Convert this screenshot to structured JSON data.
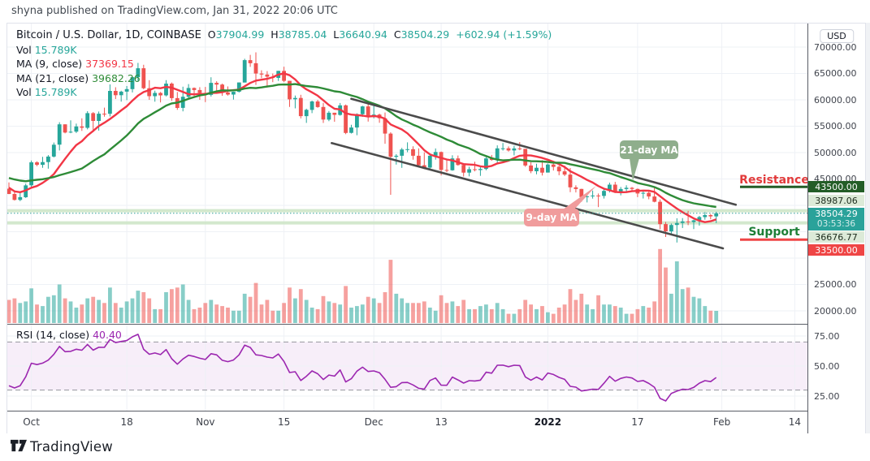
{
  "published_bar": {
    "text": "shyna published on TradingView.com, Jan 31, 2022 20:06 UTC"
  },
  "legend": {
    "symbol": "Bitcoin / U.S. Dollar, 1D, COINBASE",
    "ohlc": [
      {
        "k": "O",
        "v": "37904.99"
      },
      {
        "k": "H",
        "v": "38785.04"
      },
      {
        "k": "L",
        "v": "36640.94"
      },
      {
        "k": "C",
        "v": "38504.29"
      }
    ],
    "change": "+602.94 (+1.59%)",
    "rows": [
      {
        "label": "Vol",
        "value": "15.789K",
        "color": "#26a69a"
      },
      {
        "label": "MA (9, close)",
        "value": "37369.15",
        "color": "#f23645"
      },
      {
        "label": "MA (21, close)",
        "value": "39682.26",
        "color": "#2e8b37"
      },
      {
        "label": "Vol",
        "value": "15.789K",
        "color": "#26a69a"
      }
    ]
  },
  "annotations": {
    "ma21_callout": "21-day MA",
    "ma9_callout": "9-day MA",
    "resistance_label": "Resistance",
    "support_label": "Support"
  },
  "rsi_pane": {
    "label": "RSI (14, close)",
    "value": "40.40"
  },
  "right_axis": {
    "currency": "USD"
  },
  "footer": {
    "brand": "TradingView"
  },
  "colors": {
    "up": "#26a69a",
    "down": "#ef5350",
    "ma_fast": "#f23645",
    "ma_slow": "#2e8b37",
    "rsi_line": "#9c27b0",
    "channel": "#4b4b4b",
    "pale_level": "#cfe6c8",
    "resistance_line": "#235d27",
    "support_line": "#ef4545",
    "resistance_text": "#e23b3b",
    "support_text": "#1d7f36",
    "callout_green": "#8fae8c",
    "callout_pink": "#f09c9c",
    "badge_dark_green": "#235d27",
    "badge_pale_green": "#dcead8",
    "badge_teal": "#2aa29a",
    "badge_red": "#ef4545",
    "grid": "#eef1f6"
  },
  "chart_data": {
    "type": "candlestick",
    "symbol": "Bitcoin / U.S. Dollar",
    "interval": "1D",
    "exchange": "COINBASE",
    "first_visible_date": "2021-09-27",
    "price_axis": {
      "min": 20000,
      "max": 70000,
      "step": 5000,
      "visible_labels": [
        {
          "text": "70000.00",
          "price": 70000
        },
        {
          "text": "65000.00",
          "price": 65000
        },
        {
          "text": "60000.00",
          "price": 60000
        },
        {
          "text": "55000.00",
          "price": 55000
        },
        {
          "text": "50000.00",
          "price": 50000
        },
        {
          "text": "45000.00",
          "price": 45000
        },
        {
          "text": "25000.00",
          "price": 25000
        },
        {
          "text": "20000.00",
          "price": 20000
        }
      ]
    },
    "time_labels": [
      {
        "text": "Oct",
        "day": 4,
        "bold": false
      },
      {
        "text": "18",
        "day": 21,
        "bold": false
      },
      {
        "text": "Nov",
        "day": 35,
        "bold": false
      },
      {
        "text": "15",
        "day": 49,
        "bold": false
      },
      {
        "text": "Dec",
        "day": 65,
        "bold": false
      },
      {
        "text": "13",
        "day": 77,
        "bold": false
      },
      {
        "text": "2022",
        "day": 96,
        "bold": true
      },
      {
        "text": "17",
        "day": 112,
        "bold": false
      },
      {
        "text": "Feb",
        "day": 127,
        "bold": false
      },
      {
        "text": "14",
        "day": 140,
        "bold": false
      }
    ],
    "last_price": {
      "value": 38504.29,
      "text": "38504.29",
      "countdown": "03:53:36",
      "direction": "up"
    },
    "levels": [
      {
        "name": "resistance",
        "price": 43500.0,
        "text": "43500.00",
        "kind": "segment-dark-green"
      },
      {
        "name": "level-upper",
        "price": 38987.06,
        "text": "38987.06",
        "kind": "full-pale-green"
      },
      {
        "name": "level-lower",
        "price": 36676.77,
        "text": "36676.77",
        "kind": "full-pale-green"
      },
      {
        "name": "support",
        "price": 33500.0,
        "text": "33500.00",
        "kind": "segment-red"
      }
    ],
    "channel": {
      "upper": [
        [
          61,
          60200
        ],
        [
          129.5,
          40100
        ]
      ],
      "lower": [
        [
          57.5,
          51800
        ],
        [
          127.2,
          31850
        ]
      ]
    },
    "ma": [
      {
        "period": 9,
        "color": "#f23645"
      },
      {
        "period": 21,
        "color": "#2e8b37"
      }
    ],
    "rsi": {
      "period": 14,
      "bands": [
        70,
        30
      ],
      "ticks": [
        {
          "text": "75.00",
          "v": 75
        },
        {
          "text": "50.00",
          "v": 50
        },
        {
          "text": "25.00",
          "v": 25
        }
      ]
    },
    "volume_unit": "K",
    "seed_closes": [
      52700,
      46800,
      46050,
      46400,
      44850,
      45150,
      46050,
      44950,
      47100,
      48150,
      47750,
      47270,
      48250,
      47250,
      43000,
      40700,
      43550,
      44890,
      42700,
      42680,
      43160
    ],
    "candles": [
      [
        43160,
        44350,
        42100,
        42160,
        30
      ],
      [
        42160,
        42750,
        40900,
        41030,
        32
      ],
      [
        41030,
        42600,
        40800,
        41550,
        26
      ],
      [
        41550,
        44100,
        41400,
        43790,
        28
      ],
      [
        43790,
        48500,
        43300,
        48150,
        45
      ],
      [
        48150,
        48340,
        47430,
        47680,
        24
      ],
      [
        47680,
        49200,
        47100,
        48200,
        22
      ],
      [
        48200,
        49530,
        46950,
        49250,
        34
      ],
      [
        49250,
        51900,
        49070,
        51500,
        36
      ],
      [
        51500,
        55750,
        50400,
        55350,
        50
      ],
      [
        55350,
        55350,
        53650,
        53800,
        32
      ],
      [
        53800,
        56100,
        53670,
        53960,
        28
      ],
      [
        53960,
        55500,
        53700,
        54950,
        20
      ],
      [
        54950,
        56500,
        54100,
        54700,
        24
      ],
      [
        54700,
        57840,
        54400,
        57480,
        32
      ],
      [
        57480,
        57680,
        53880,
        56000,
        34
      ],
      [
        56000,
        57780,
        54170,
        57370,
        30
      ],
      [
        57370,
        58520,
        56820,
        57350,
        26
      ],
      [
        57350,
        62930,
        56850,
        61690,
        46
      ],
      [
        61690,
        62380,
        60150,
        60880,
        26
      ],
      [
        60880,
        61720,
        59660,
        61550,
        20
      ],
      [
        61550,
        62620,
        59960,
        62030,
        28
      ],
      [
        62030,
        64480,
        61400,
        64290,
        32
      ],
      [
        64290,
        67000,
        63500,
        65990,
        42
      ],
      [
        65990,
        66650,
        62000,
        62200,
        40
      ],
      [
        62200,
        63720,
        60000,
        60690,
        32
      ],
      [
        60690,
        61740,
        59650,
        61310,
        18
      ],
      [
        61310,
        61500,
        59510,
        60850,
        18
      ],
      [
        60850,
        63730,
        60650,
        63080,
        40
      ],
      [
        63080,
        63290,
        59820,
        60330,
        44
      ],
      [
        60330,
        61470,
        58100,
        58470,
        46
      ],
      [
        58470,
        62500,
        57820,
        60580,
        50
      ],
      [
        60580,
        62980,
        60170,
        62250,
        30
      ],
      [
        62250,
        62360,
        60700,
        61860,
        18
      ],
      [
        61860,
        62400,
        60000,
        61320,
        20
      ],
      [
        61320,
        62440,
        59570,
        60950,
        26
      ],
      [
        60950,
        64270,
        60630,
        63220,
        30
      ],
      [
        63220,
        63520,
        61350,
        62900,
        24
      ],
      [
        62900,
        63080,
        60770,
        61400,
        22
      ],
      [
        61400,
        62540,
        60800,
        61000,
        20
      ],
      [
        61000,
        61560,
        60050,
        61520,
        16
      ],
      [
        61520,
        63290,
        61400,
        63290,
        16
      ],
      [
        63290,
        67790,
        63290,
        67530,
        38
      ],
      [
        67530,
        68530,
        66250,
        66940,
        34
      ],
      [
        66940,
        69000,
        62830,
        64980,
        52
      ],
      [
        64980,
        65600,
        64100,
        64800,
        24
      ],
      [
        64800,
        65450,
        62340,
        64380,
        30
      ],
      [
        64380,
        64980,
        63360,
        64160,
        16
      ],
      [
        64160,
        65500,
        63580,
        65500,
        16
      ],
      [
        65500,
        66280,
        63360,
        63600,
        26
      ],
      [
        63600,
        63600,
        58640,
        60100,
        46
      ],
      [
        60100,
        60820,
        58380,
        60350,
        32
      ],
      [
        60350,
        60950,
        56470,
        56900,
        44
      ],
      [
        56900,
        58320,
        55630,
        58100,
        30
      ],
      [
        58100,
        59850,
        57470,
        59700,
        20
      ],
      [
        59700,
        60000,
        58490,
        58640,
        18
      ],
      [
        58640,
        59430,
        55620,
        56250,
        35
      ],
      [
        56250,
        57870,
        55950,
        57550,
        28
      ],
      [
        57550,
        57550,
        55840,
        57150,
        26
      ],
      [
        57150,
        59400,
        57000,
        58960,
        24
      ],
      [
        58960,
        59100,
        53500,
        53730,
        48
      ],
      [
        53730,
        55280,
        53610,
        54750,
        20
      ],
      [
        54750,
        57440,
        53290,
        57280,
        22
      ],
      [
        57280,
        58870,
        56780,
        58750,
        24
      ],
      [
        58750,
        59180,
        55880,
        57000,
        34
      ],
      [
        57000,
        59050,
        56500,
        57200,
        32
      ],
      [
        57200,
        57380,
        55640,
        56500,
        26
      ],
      [
        56500,
        57600,
        51680,
        53600,
        40
      ],
      [
        53600,
        53850,
        42000,
        49200,
        82
      ],
      [
        49200,
        49700,
        47720,
        49400,
        38
      ],
      [
        49400,
        50890,
        47110,
        50580,
        32
      ],
      [
        50580,
        51940,
        50080,
        50640,
        26
      ],
      [
        50640,
        51180,
        48660,
        49400,
        26
      ],
      [
        49400,
        50800,
        47320,
        47600,
        26
      ],
      [
        47600,
        50050,
        46850,
        47150,
        28
      ],
      [
        47150,
        49480,
        46760,
        49400,
        20
      ],
      [
        49400,
        50780,
        48660,
        50100,
        16
      ],
      [
        50100,
        50200,
        45670,
        46700,
        36
      ],
      [
        46700,
        48650,
        46290,
        46650,
        26
      ],
      [
        46650,
        49500,
        46550,
        48900,
        28
      ],
      [
        48900,
        49440,
        47520,
        47650,
        22
      ],
      [
        47650,
        47990,
        45460,
        46200,
        30
      ],
      [
        46200,
        47320,
        45500,
        46850,
        18
      ],
      [
        46850,
        48280,
        46450,
        46700,
        18
      ],
      [
        46700,
        47520,
        45580,
        46900,
        22
      ],
      [
        46900,
        49300,
        46650,
        48900,
        24
      ],
      [
        48900,
        49550,
        48450,
        48600,
        18
      ],
      [
        48600,
        51370,
        48040,
        50800,
        26
      ],
      [
        50800,
        51810,
        50390,
        50820,
        18
      ],
      [
        50820,
        51170,
        50180,
        50400,
        12
      ],
      [
        50400,
        51280,
        49460,
        50780,
        12
      ],
      [
        50780,
        52000,
        50450,
        50700,
        18
      ],
      [
        50700,
        50700,
        47300,
        47550,
        30
      ],
      [
        47550,
        48150,
        46090,
        46470,
        24
      ],
      [
        46470,
        47900,
        45900,
        47130,
        18
      ],
      [
        47130,
        48550,
        45650,
        46210,
        22
      ],
      [
        46210,
        47920,
        46210,
        47740,
        14
      ],
      [
        47740,
        47960,
        46600,
        47300,
        12
      ],
      [
        47300,
        47570,
        45700,
        46440,
        20
      ],
      [
        46440,
        47520,
        45540,
        45830,
        24
      ],
      [
        45830,
        47070,
        42500,
        43420,
        44
      ],
      [
        43420,
        43800,
        42450,
        43100,
        30
      ],
      [
        43100,
        43140,
        40680,
        41560,
        38
      ],
      [
        41560,
        42300,
        40550,
        41700,
        24
      ],
      [
        41700,
        42800,
        41270,
        41860,
        18
      ],
      [
        41860,
        42250,
        39660,
        41780,
        36
      ],
      [
        41780,
        43100,
        41290,
        42740,
        24
      ],
      [
        42740,
        44300,
        42450,
        43930,
        24
      ],
      [
        43930,
        44450,
        42350,
        42580,
        22
      ],
      [
        42580,
        43470,
        41890,
        43090,
        20
      ],
      [
        43090,
        43800,
        42600,
        43320,
        12
      ],
      [
        43320,
        43480,
        42600,
        43100,
        12
      ],
      [
        43100,
        43190,
        41550,
        42240,
        18
      ],
      [
        42240,
        42700,
        41290,
        42370,
        22
      ],
      [
        42370,
        42600,
        41150,
        41680,
        20
      ],
      [
        41680,
        43500,
        40570,
        40680,
        28
      ],
      [
        40680,
        41100,
        35440,
        36440,
        96
      ],
      [
        36440,
        36850,
        34000,
        35070,
        72
      ],
      [
        35070,
        36550,
        34620,
        36280,
        38
      ],
      [
        36280,
        37550,
        32950,
        36650,
        80
      ],
      [
        36650,
        37580,
        35700,
        36950,
        44
      ],
      [
        36950,
        38960,
        36250,
        36840,
        46
      ],
      [
        36840,
        37280,
        35510,
        37160,
        34
      ],
      [
        37160,
        38000,
        36150,
        37780,
        32
      ],
      [
        37780,
        38720,
        37270,
        38160,
        22
      ],
      [
        38160,
        38360,
        37370,
        37920,
        16
      ],
      [
        37904.99,
        38785.04,
        36640.94,
        38504.29,
        15.789
      ]
    ]
  }
}
